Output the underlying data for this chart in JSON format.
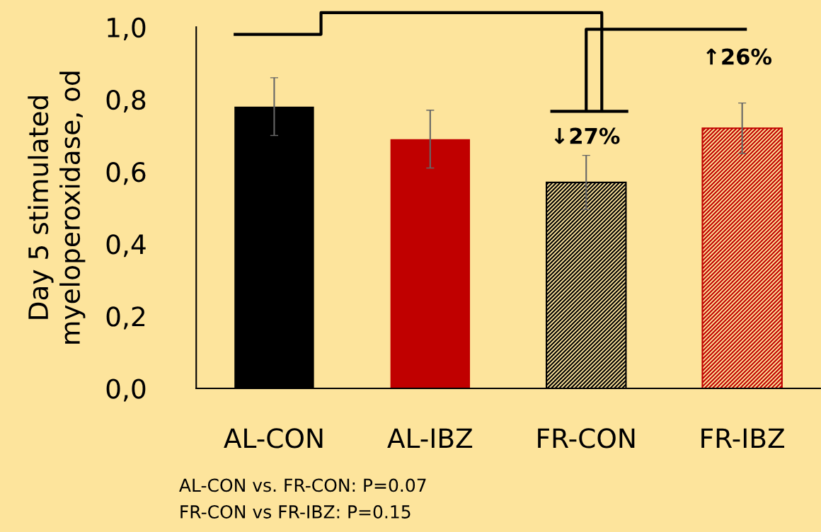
{
  "chart_data": {
    "type": "bar",
    "ylabel": "Day 5 stimulated\nmyeloperoxidase, od",
    "categories": [
      "AL-CON",
      "AL-IBZ",
      "FR-CON",
      "FR-IBZ"
    ],
    "values": [
      0.78,
      0.69,
      0.57,
      0.72
    ],
    "errors": [
      0.08,
      0.08,
      0.075,
      0.07
    ],
    "colors": [
      "#000000",
      "#c00000",
      "#000000",
      "#c00000"
    ],
    "ylim": [
      0,
      1.0
    ],
    "yticks": [
      {
        "value": 0.0,
        "label": "0,0"
      },
      {
        "value": 0.2,
        "label": "0,2"
      },
      {
        "value": 0.4,
        "label": "0,4"
      },
      {
        "value": 0.6,
        "label": "0,6"
      },
      {
        "value": 0.8,
        "label": "0,8"
      },
      {
        "value": 1.0,
        "label": "1,0"
      }
    ],
    "grid": false,
    "annotations": [
      "↓27%",
      "↑26%",
      "AL-CON vs. FR-CON: P=0.07",
      "FR-CON vs FR-IBZ: P=0.15"
    ]
  }
}
